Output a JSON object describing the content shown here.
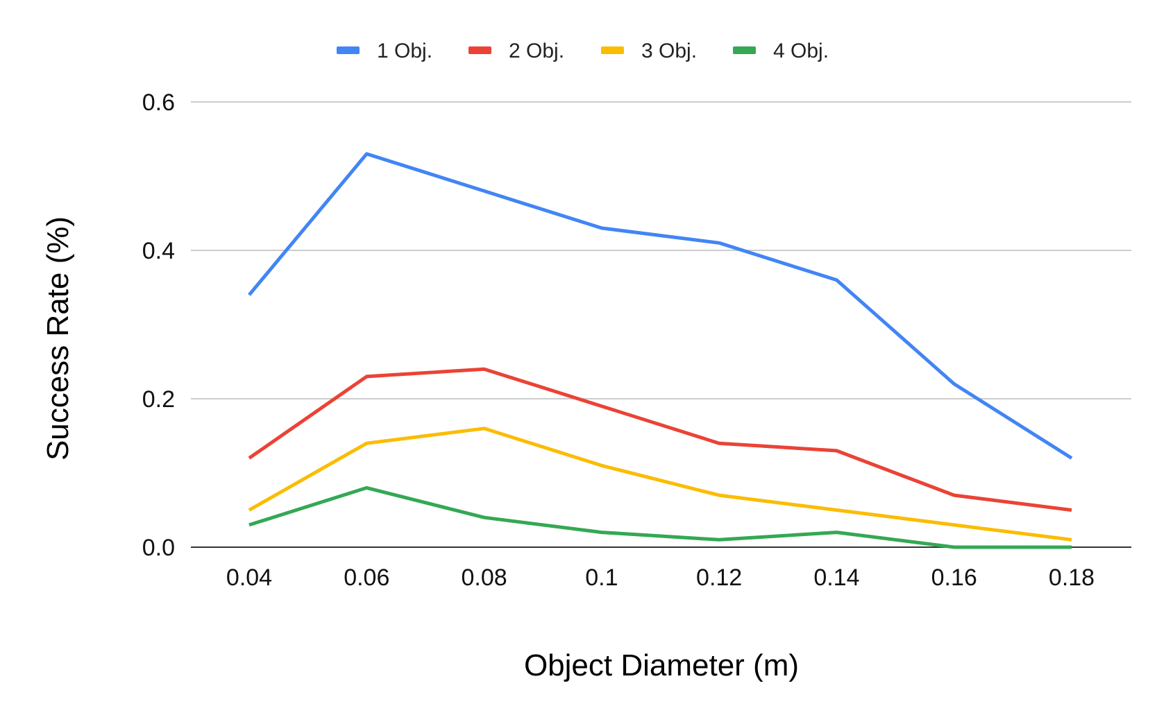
{
  "chart_data": {
    "type": "line",
    "x": [
      "0.04",
      "0.06",
      "0.08",
      "0.1",
      "0.12",
      "0.14",
      "0.16",
      "0.18"
    ],
    "series": [
      {
        "name": "1 Obj.",
        "color": "#4285F4",
        "values": [
          0.34,
          0.53,
          0.48,
          0.43,
          0.41,
          0.36,
          0.22,
          0.12
        ]
      },
      {
        "name": "2 Obj.",
        "color": "#EA4335",
        "values": [
          0.12,
          0.23,
          0.24,
          0.19,
          0.14,
          0.13,
          0.07,
          0.05
        ]
      },
      {
        "name": "3 Obj.",
        "color": "#FBBC04",
        "values": [
          0.05,
          0.14,
          0.16,
          0.11,
          0.07,
          0.05,
          0.03,
          0.01
        ]
      },
      {
        "name": "4 Obj.",
        "color": "#34A853",
        "values": [
          0.03,
          0.08,
          0.04,
          0.02,
          0.01,
          0.02,
          0.0,
          0.0
        ]
      }
    ],
    "xlabel": "Object Diameter (m)",
    "ylabel": "Success Rate (%)",
    "ylim": [
      0,
      0.6
    ],
    "yticks": [
      "0.0",
      "0.2",
      "0.4",
      "0.6"
    ],
    "grid": true,
    "legend_position": "top"
  }
}
